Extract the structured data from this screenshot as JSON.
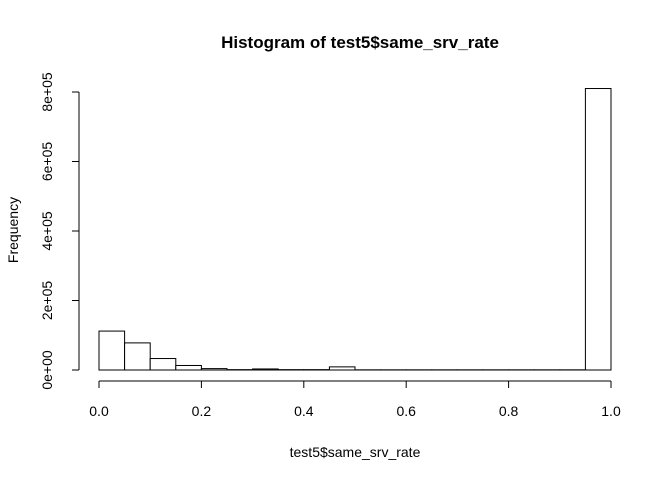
{
  "chart_data": {
    "type": "bar",
    "title": "Histogram of test5$same_srv_rate",
    "xlabel": "test5$same_srv_rate",
    "ylabel": "Frequency",
    "xlim": [
      0,
      1
    ],
    "ylim": [
      0,
      800000
    ],
    "x_ticks": [
      {
        "value": 0,
        "label": "0.0"
      },
      {
        "value": 0.2,
        "label": "0.2"
      },
      {
        "value": 0.4,
        "label": "0.4"
      },
      {
        "value": 0.6,
        "label": "0.6"
      },
      {
        "value": 0.8,
        "label": "0.8"
      },
      {
        "value": 1,
        "label": "1.0"
      }
    ],
    "y_ticks": [
      {
        "value": 0,
        "label": "0e+00"
      },
      {
        "value": 200000,
        "label": "2e+05"
      },
      {
        "value": 400000,
        "label": "4e+05"
      },
      {
        "value": 600000,
        "label": "6e+05"
      },
      {
        "value": 800000,
        "label": "8e+05"
      }
    ],
    "bin_width": 0.05,
    "bins_start": [
      0,
      0.05,
      0.1,
      0.15,
      0.2,
      0.25,
      0.3,
      0.35,
      0.4,
      0.45,
      0.5,
      0.55,
      0.6,
      0.65,
      0.7,
      0.75,
      0.8,
      0.85,
      0.9,
      0.95
    ],
    "values": [
      112000,
      78000,
      33000,
      13000,
      4000,
      1000,
      3000,
      1000,
      1000,
      9000,
      500,
      500,
      500,
      500,
      500,
      500,
      500,
      500,
      500,
      810000
    ],
    "grid": false,
    "legend": "none"
  }
}
